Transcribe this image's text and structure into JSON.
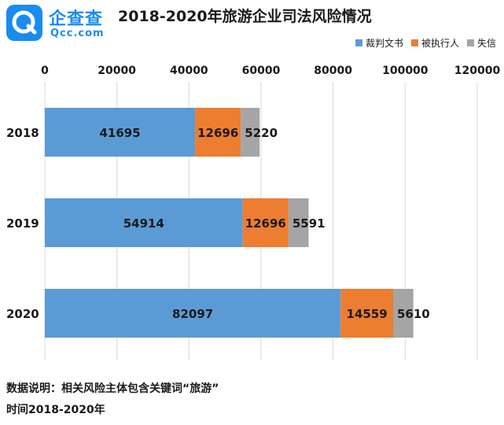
{
  "logo": {
    "cn": "企查查",
    "en": "Qcc.com"
  },
  "chart_data": {
    "type": "bar",
    "orientation": "horizontal",
    "stacked": true,
    "title": "2018-2020年旅游企业司法风险情况",
    "categories": [
      "2018",
      "2019",
      "2020"
    ],
    "series": [
      {
        "name": "裁判文书",
        "color": "#5b9bd5",
        "values": [
          41695,
          54914,
          82097
        ]
      },
      {
        "name": "被执行人",
        "color": "#ed7d31",
        "values": [
          12696,
          12696,
          14559
        ]
      },
      {
        "name": "失信",
        "color": "#a5a5a5",
        "values": [
          5220,
          5591,
          5610
        ]
      }
    ],
    "xlim": [
      0,
      120000
    ],
    "xticks": [
      "0",
      "20000",
      "40000",
      "60000",
      "80000",
      "100000",
      "120000"
    ],
    "xtick_values": [
      0,
      20000,
      40000,
      60000,
      80000,
      100000,
      120000
    ],
    "value_labels": [
      [
        "41695",
        "12696",
        "5220"
      ],
      [
        "54914",
        "12696",
        "5591"
      ],
      [
        "82097",
        "14559",
        "5610"
      ]
    ],
    "grid": true,
    "legend_position": "top-right",
    "x_axis_position": "top"
  },
  "footer": {
    "note": "数据说明：相关风险主体包含关键词“旅游”",
    "period": "时间2018-2020年"
  }
}
